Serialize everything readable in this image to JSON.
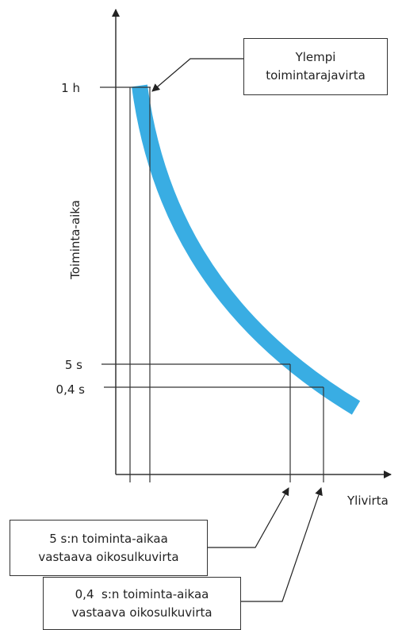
{
  "axes": {
    "y_label": "Toiminta-aika",
    "x_label": "Ylivirta",
    "y_ticks": [
      "1 h",
      "5 s",
      "0,4 s"
    ]
  },
  "curve": {
    "color": "#39ade3"
  },
  "callouts": {
    "upper_limit": [
      "Ylempi",
      "toimintarajavirta"
    ],
    "five_s": [
      "5 s:n toiminta-aikaa",
      "vastaava oikosulkuvirta"
    ],
    "zero_four_s": [
      "0,4  s:n toiminta-aikaa",
      "vastaava oikosulkuvirta"
    ]
  },
  "colors": {
    "lines": "#333333",
    "band": "#39ade3"
  }
}
